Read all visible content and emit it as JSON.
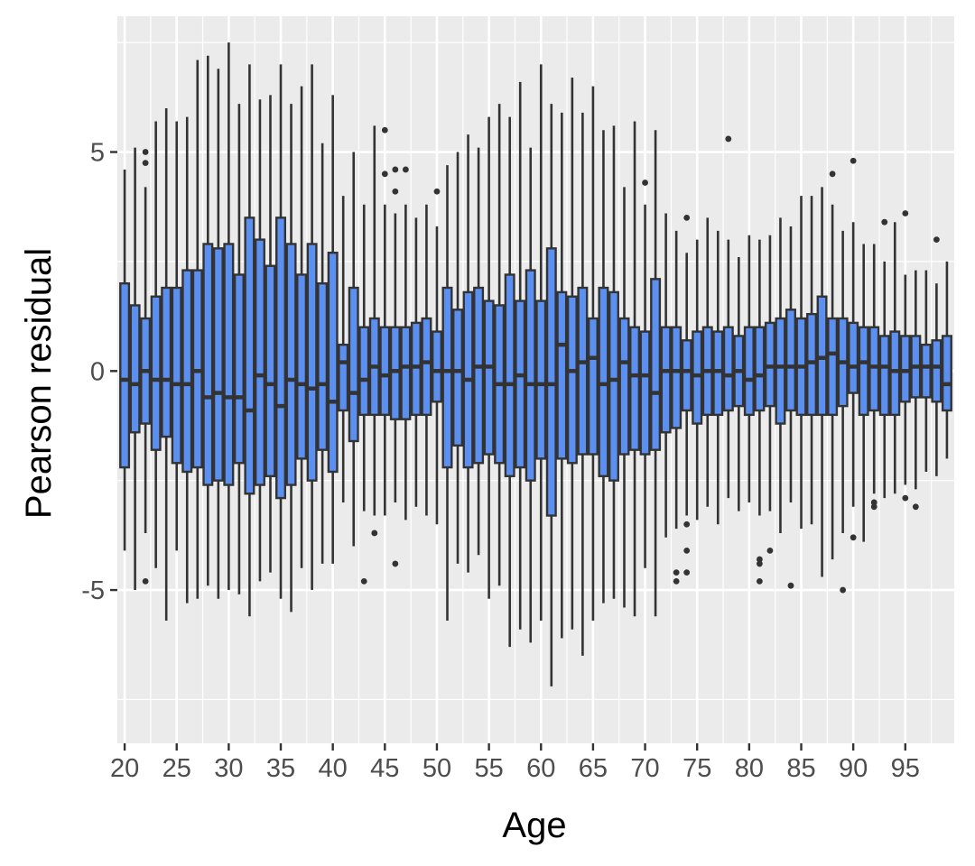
{
  "chart_data": {
    "type": "boxplot",
    "xlabel": "Age",
    "ylabel": "Pearson residual",
    "x_tick_labels": [
      "20",
      "25",
      "30",
      "35",
      "40",
      "45",
      "50",
      "55",
      "60",
      "65",
      "70",
      "75",
      "80",
      "85",
      "90",
      "95"
    ],
    "y_tick_labels": [
      "5",
      "0",
      "-5"
    ],
    "xlim": [
      19.3,
      99.7
    ],
    "ylim": [
      -8.5,
      8.1
    ],
    "grid": true,
    "colors": {
      "panel": "#ebebeb",
      "grid": "#ffffff",
      "box_fill": "#5b8ff0",
      "box_line": "#333333"
    },
    "boxes": [
      {
        "age": 20,
        "min": -4.1,
        "q1": -2.2,
        "median": -0.2,
        "q3": 2.0,
        "max": 4.6,
        "outliers": []
      },
      {
        "age": 21,
        "min": -5.0,
        "q1": -1.4,
        "median": -0.3,
        "q3": 1.5,
        "max": 5.1,
        "outliers": []
      },
      {
        "age": 22,
        "min": -3.7,
        "q1": -1.2,
        "median": 0.0,
        "q3": 1.2,
        "max": 4.2,
        "outliers": [
          5.0,
          4.75,
          -4.8
        ]
      },
      {
        "age": 23,
        "min": -4.5,
        "q1": -1.8,
        "median": -0.2,
        "q3": 1.7,
        "max": 5.7,
        "outliers": []
      },
      {
        "age": 24,
        "min": -5.7,
        "q1": -1.5,
        "median": -0.2,
        "q3": 1.9,
        "max": 6.0,
        "outliers": []
      },
      {
        "age": 25,
        "min": -4.1,
        "q1": -2.1,
        "median": -0.3,
        "q3": 1.9,
        "max": 5.7,
        "outliers": []
      },
      {
        "age": 26,
        "min": -5.3,
        "q1": -2.3,
        "median": -0.3,
        "q3": 2.3,
        "max": 5.8,
        "outliers": []
      },
      {
        "age": 27,
        "min": -5.2,
        "q1": -2.2,
        "median": 0.0,
        "q3": 2.3,
        "max": 7.1,
        "outliers": []
      },
      {
        "age": 28,
        "min": -4.9,
        "q1": -2.6,
        "median": -0.6,
        "q3": 2.9,
        "max": 7.2,
        "outliers": []
      },
      {
        "age": 29,
        "min": -5.2,
        "q1": -2.5,
        "median": -0.5,
        "q3": 2.8,
        "max": 6.9,
        "outliers": []
      },
      {
        "age": 30,
        "min": -5.0,
        "q1": -2.6,
        "median": -0.6,
        "q3": 2.9,
        "max": 7.5,
        "outliers": []
      },
      {
        "age": 31,
        "min": -5.1,
        "q1": -2.1,
        "median": -0.6,
        "q3": 2.2,
        "max": 6.1,
        "outliers": []
      },
      {
        "age": 32,
        "min": -5.6,
        "q1": -2.8,
        "median": -0.9,
        "q3": 3.5,
        "max": 7.0,
        "outliers": []
      },
      {
        "age": 33,
        "min": -4.8,
        "q1": -2.6,
        "median": -0.1,
        "q3": 3.0,
        "max": 6.2,
        "outliers": []
      },
      {
        "age": 34,
        "min": -4.6,
        "q1": -2.4,
        "median": -0.3,
        "q3": 2.4,
        "max": 6.3,
        "outliers": []
      },
      {
        "age": 35,
        "min": -5.2,
        "q1": -2.9,
        "median": -0.8,
        "q3": 3.5,
        "max": 7.0,
        "outliers": []
      },
      {
        "age": 36,
        "min": -5.5,
        "q1": -2.6,
        "median": -0.2,
        "q3": 2.9,
        "max": 6.1,
        "outliers": []
      },
      {
        "age": 37,
        "min": -4.5,
        "q1": -2.0,
        "median": -0.3,
        "q3": 2.2,
        "max": 6.5,
        "outliers": []
      },
      {
        "age": 38,
        "min": -5.0,
        "q1": -2.5,
        "median": -0.4,
        "q3": 2.9,
        "max": 7.0,
        "outliers": []
      },
      {
        "age": 39,
        "min": -4.4,
        "q1": -1.8,
        "median": -0.3,
        "q3": 2.0,
        "max": 5.2,
        "outliers": []
      },
      {
        "age": 40,
        "min": -4.4,
        "q1": -2.3,
        "median": -0.7,
        "q3": 2.7,
        "max": 6.3,
        "outliers": []
      },
      {
        "age": 41,
        "min": -3.0,
        "q1": -0.9,
        "median": 0.2,
        "q3": 0.6,
        "max": 4.0,
        "outliers": []
      },
      {
        "age": 42,
        "min": -4.0,
        "q1": -1.6,
        "median": -0.5,
        "q3": 1.9,
        "max": 5.0,
        "outliers": []
      },
      {
        "age": 43,
        "min": -3.2,
        "q1": -1.0,
        "median": -0.2,
        "q3": 1.0,
        "max": 3.8,
        "outliers": [
          -4.8
        ]
      },
      {
        "age": 44,
        "min": -3.3,
        "q1": -1.0,
        "median": 0.1,
        "q3": 1.2,
        "max": 5.6,
        "outliers": [
          -3.7
        ]
      },
      {
        "age": 45,
        "min": -3.3,
        "q1": -1.0,
        "median": -0.1,
        "q3": 1.0,
        "max": 3.8,
        "outliers": [
          5.5,
          4.5
        ]
      },
      {
        "age": 46,
        "min": -3.0,
        "q1": -1.1,
        "median": 0.0,
        "q3": 1.0,
        "max": 3.6,
        "outliers": [
          4.6,
          4.1,
          -4.4
        ]
      },
      {
        "age": 47,
        "min": -3.4,
        "q1": -1.1,
        "median": 0.1,
        "q3": 1.0,
        "max": 3.8,
        "outliers": [
          4.6
        ]
      },
      {
        "age": 48,
        "min": -3.1,
        "q1": -1.0,
        "median": 0.1,
        "q3": 1.1,
        "max": 3.5,
        "outliers": []
      },
      {
        "age": 49,
        "min": -3.3,
        "q1": -1.0,
        "median": 0.2,
        "q3": 1.2,
        "max": 3.8,
        "outliers": []
      },
      {
        "age": 50,
        "min": -3.5,
        "q1": -0.7,
        "median": 0.0,
        "q3": 0.9,
        "max": 3.3,
        "outliers": [
          4.1
        ]
      },
      {
        "age": 51,
        "min": -5.7,
        "q1": -2.2,
        "median": 0.0,
        "q3": 1.9,
        "max": 4.7,
        "outliers": []
      },
      {
        "age": 52,
        "min": -4.4,
        "q1": -1.7,
        "median": 0.0,
        "q3": 1.4,
        "max": 5.0,
        "outliers": []
      },
      {
        "age": 53,
        "min": -4.6,
        "q1": -2.2,
        "median": -0.2,
        "q3": 1.8,
        "max": 5.4,
        "outliers": []
      },
      {
        "age": 54,
        "min": -4.2,
        "q1": -2.1,
        "median": 0.1,
        "q3": 1.9,
        "max": 5.1,
        "outliers": []
      },
      {
        "age": 55,
        "min": -5.2,
        "q1": -1.9,
        "median": 0.1,
        "q3": 1.6,
        "max": 5.8,
        "outliers": []
      },
      {
        "age": 56,
        "min": -4.9,
        "q1": -2.1,
        "median": -0.3,
        "q3": 1.5,
        "max": 6.1,
        "outliers": []
      },
      {
        "age": 57,
        "min": -6.3,
        "q1": -2.4,
        "median": -0.3,
        "q3": 2.2,
        "max": 5.8,
        "outliers": []
      },
      {
        "age": 58,
        "min": -5.9,
        "q1": -2.2,
        "median": -0.1,
        "q3": 1.6,
        "max": 6.6,
        "outliers": []
      },
      {
        "age": 59,
        "min": -6.2,
        "q1": -2.5,
        "median": -0.3,
        "q3": 2.3,
        "max": 5.1,
        "outliers": []
      },
      {
        "age": 60,
        "min": -5.7,
        "q1": -2.0,
        "median": -0.3,
        "q3": 1.6,
        "max": 7.0,
        "outliers": []
      },
      {
        "age": 61,
        "min": -7.2,
        "q1": -3.3,
        "median": -0.3,
        "q3": 2.8,
        "max": 6.1,
        "outliers": []
      },
      {
        "age": 62,
        "min": -6.1,
        "q1": -2.0,
        "median": 0.6,
        "q3": 1.8,
        "max": 5.9,
        "outliers": []
      },
      {
        "age": 63,
        "min": -5.9,
        "q1": -2.1,
        "median": 0.0,
        "q3": 1.7,
        "max": 6.7,
        "outliers": []
      },
      {
        "age": 64,
        "min": -6.5,
        "q1": -1.9,
        "median": 0.2,
        "q3": 1.9,
        "max": 5.9,
        "outliers": []
      },
      {
        "age": 65,
        "min": -5.7,
        "q1": -1.9,
        "median": 0.3,
        "q3": 1.2,
        "max": 6.5,
        "outliers": []
      },
      {
        "age": 66,
        "min": -5.3,
        "q1": -2.4,
        "median": -0.3,
        "q3": 1.9,
        "max": 5.5,
        "outliers": []
      },
      {
        "age": 67,
        "min": -5.2,
        "q1": -2.5,
        "median": -0.2,
        "q3": 1.8,
        "max": 5.6,
        "outliers": []
      },
      {
        "age": 68,
        "min": -5.4,
        "q1": -1.9,
        "median": 0.2,
        "q3": 1.2,
        "max": 4.2,
        "outliers": []
      },
      {
        "age": 69,
        "min": -5.6,
        "q1": -1.8,
        "median": -0.1,
        "q3": 1.0,
        "max": 5.7,
        "outliers": []
      },
      {
        "age": 70,
        "min": -4.5,
        "q1": -1.9,
        "median": -0.1,
        "q3": 0.9,
        "max": 3.8,
        "outliers": [
          4.3
        ]
      },
      {
        "age": 71,
        "min": -5.6,
        "q1": -1.8,
        "median": -0.5,
        "q3": 2.1,
        "max": 5.5,
        "outliers": []
      },
      {
        "age": 72,
        "min": -3.8,
        "q1": -1.4,
        "median": 0.0,
        "q3": 1.0,
        "max": 3.6,
        "outliers": []
      },
      {
        "age": 73,
        "min": -3.6,
        "q1": -1.3,
        "median": 0.0,
        "q3": 1.0,
        "max": 3.2,
        "outliers": [
          -4.6,
          -4.8
        ]
      },
      {
        "age": 74,
        "min": -3.3,
        "q1": -0.9,
        "median": 0.0,
        "q3": 0.7,
        "max": 2.7,
        "outliers": [
          3.5,
          -3.5,
          -4.1,
          -4.6
        ]
      },
      {
        "age": 75,
        "min": -3.4,
        "q1": -1.2,
        "median": -0.1,
        "q3": 0.9,
        "max": 3.0,
        "outliers": []
      },
      {
        "age": 76,
        "min": -3.1,
        "q1": -1.0,
        "median": 0.0,
        "q3": 1.0,
        "max": 3.5,
        "outliers": []
      },
      {
        "age": 77,
        "min": -3.5,
        "q1": -1.0,
        "median": 0.0,
        "q3": 0.9,
        "max": 3.2,
        "outliers": []
      },
      {
        "age": 78,
        "min": -2.9,
        "q1": -0.9,
        "median": -0.1,
        "q3": 1.0,
        "max": 3.0,
        "outliers": [
          5.3
        ]
      },
      {
        "age": 79,
        "min": -3.2,
        "q1": -0.8,
        "median": 0.0,
        "q3": 0.8,
        "max": 2.6,
        "outliers": []
      },
      {
        "age": 80,
        "min": -3.0,
        "q1": -1.0,
        "median": -0.2,
        "q3": 1.0,
        "max": 3.1,
        "outliers": []
      },
      {
        "age": 81,
        "min": -3.3,
        "q1": -0.9,
        "median": -0.1,
        "q3": 1.0,
        "max": 3.0,
        "outliers": [
          -4.3,
          -4.4,
          -4.8
        ]
      },
      {
        "age": 82,
        "min": -3.2,
        "q1": -0.8,
        "median": 0.1,
        "q3": 1.1,
        "max": 3.1,
        "outliers": [
          -4.1
        ]
      },
      {
        "age": 83,
        "min": -3.7,
        "q1": -1.2,
        "median": 0.1,
        "q3": 1.2,
        "max": 3.5,
        "outliers": []
      },
      {
        "age": 84,
        "min": -3.0,
        "q1": -0.9,
        "median": 0.1,
        "q3": 1.4,
        "max": 3.3,
        "outliers": [
          -4.9
        ]
      },
      {
        "age": 85,
        "min": -3.6,
        "q1": -1.0,
        "median": 0.1,
        "q3": 1.2,
        "max": 4.0,
        "outliers": []
      },
      {
        "age": 86,
        "min": -3.5,
        "q1": -1.0,
        "median": 0.2,
        "q3": 1.3,
        "max": 4.0,
        "outliers": []
      },
      {
        "age": 87,
        "min": -4.7,
        "q1": -1.0,
        "median": 0.3,
        "q3": 1.7,
        "max": 4.2,
        "outliers": []
      },
      {
        "age": 88,
        "min": -4.3,
        "q1": -1.0,
        "median": 0.4,
        "q3": 1.2,
        "max": 3.8,
        "outliers": [
          4.5
        ]
      },
      {
        "age": 89,
        "min": -3.7,
        "q1": -0.8,
        "median": 0.2,
        "q3": 1.2,
        "max": 3.2,
        "outliers": [
          -5.0
        ]
      },
      {
        "age": 90,
        "min": -3.1,
        "q1": -0.5,
        "median": 0.1,
        "q3": 1.1,
        "max": 3.4,
        "outliers": [
          4.8,
          -3.8
        ]
      },
      {
        "age": 91,
        "min": -3.9,
        "q1": -1.0,
        "median": 0.2,
        "q3": 1.0,
        "max": 2.9,
        "outliers": []
      },
      {
        "age": 92,
        "min": -2.8,
        "q1": -0.9,
        "median": 0.1,
        "q3": 1.0,
        "max": 2.9,
        "outliers": [
          -3.0,
          -3.1
        ]
      },
      {
        "age": 93,
        "min": -2.9,
        "q1": -1.0,
        "median": 0.1,
        "q3": 0.8,
        "max": 2.5,
        "outliers": [
          3.4
        ]
      },
      {
        "age": 94,
        "min": -2.8,
        "q1": -1.0,
        "median": 0.0,
        "q3": 0.9,
        "max": 3.4,
        "outliers": []
      },
      {
        "age": 95,
        "min": -2.6,
        "q1": -0.7,
        "median": 0.0,
        "q3": 0.8,
        "max": 2.2,
        "outliers": [
          3.6,
          -2.9
        ]
      },
      {
        "age": 96,
        "min": -2.7,
        "q1": -0.6,
        "median": 0.1,
        "q3": 0.8,
        "max": 2.3,
        "outliers": [
          -3.1
        ]
      },
      {
        "age": 97,
        "min": -2.3,
        "q1": -0.6,
        "median": 0.1,
        "q3": 0.6,
        "max": 2.3,
        "outliers": []
      },
      {
        "age": 98,
        "min": -2.4,
        "q1": -0.7,
        "median": 0.1,
        "q3": 0.7,
        "max": 2.0,
        "outliers": [
          3.0
        ]
      },
      {
        "age": 99,
        "min": -2.0,
        "q1": -0.9,
        "median": -0.3,
        "q3": 0.8,
        "max": 2.5,
        "outliers": []
      }
    ]
  }
}
